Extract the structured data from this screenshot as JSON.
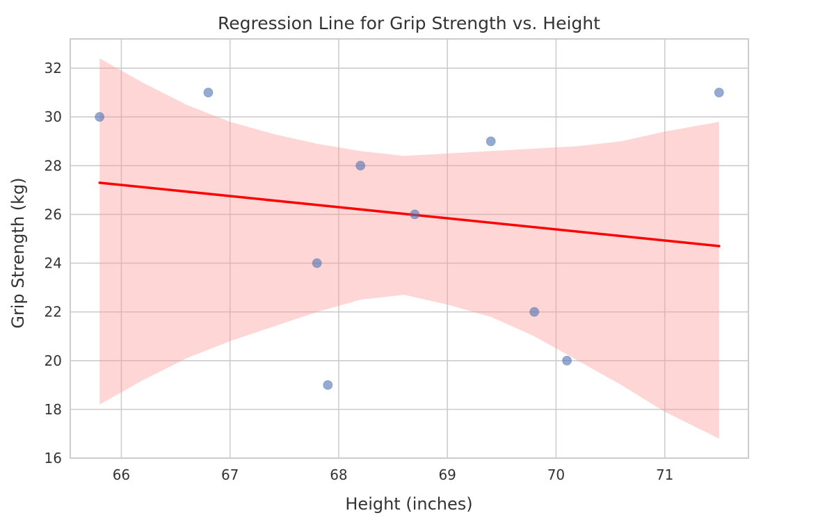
{
  "chart_data": {
    "type": "scatter",
    "title": "Regression Line for Grip Strength vs. Height",
    "xlabel": "Height (inches)",
    "ylabel": "Grip Strength (kg)",
    "xlim": [
      65.53,
      71.77
    ],
    "ylim": [
      16,
      33.2
    ],
    "xticks": [
      66,
      67,
      68,
      69,
      70,
      71
    ],
    "yticks": [
      16,
      18,
      20,
      22,
      24,
      26,
      28,
      30,
      32
    ],
    "grid": true,
    "points": [
      {
        "x": 65.8,
        "y": 30
      },
      {
        "x": 66.8,
        "y": 31
      },
      {
        "x": 67.8,
        "y": 24
      },
      {
        "x": 67.9,
        "y": 19
      },
      {
        "x": 68.2,
        "y": 28
      },
      {
        "x": 68.7,
        "y": 26
      },
      {
        "x": 69.4,
        "y": 29
      },
      {
        "x": 69.8,
        "y": 22
      },
      {
        "x": 70.1,
        "y": 20
      },
      {
        "x": 71.5,
        "y": 31
      }
    ],
    "regression": {
      "x": [
        65.8,
        71.5
      ],
      "y": [
        27.3,
        24.7
      ]
    },
    "confidence_band": {
      "x": [
        65.8,
        66.2,
        66.6,
        67.0,
        67.4,
        67.8,
        68.2,
        68.6,
        69.0,
        69.4,
        69.8,
        70.2,
        70.6,
        71.0,
        71.5
      ],
      "upper": [
        32.4,
        31.4,
        30.5,
        29.8,
        29.3,
        28.9,
        28.6,
        28.4,
        28.5,
        28.6,
        28.7,
        28.8,
        29.0,
        29.4,
        29.8
      ],
      "lower": [
        18.2,
        19.2,
        20.1,
        20.8,
        21.4,
        22.0,
        22.5,
        22.7,
        22.3,
        21.8,
        21.0,
        20.0,
        19.0,
        17.9,
        16.8
      ]
    },
    "colors": {
      "points": "#4c72b0",
      "line": "#ff0000",
      "band": "#ff9999",
      "grid": "#cccccc",
      "axes": "#cccccc"
    }
  }
}
